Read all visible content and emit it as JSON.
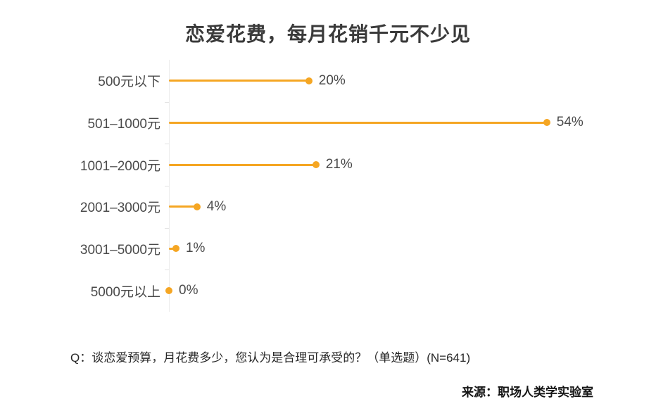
{
  "title": "恋爱花费，每月花销千元不少见",
  "chart_data": {
    "type": "bar",
    "orientation": "horizontal",
    "title": "恋爱花费，每月花销千元不少见",
    "categories": [
      "500元以下",
      "501–1000元",
      "1001–2000元",
      "2001–3000元",
      "3001–5000元",
      "5000元以上"
    ],
    "values": [
      20,
      54,
      21,
      4,
      1,
      0
    ],
    "value_labels": [
      "20%",
      "54%",
      "21%",
      "4%",
      "1%",
      "0%"
    ],
    "unit": "%",
    "xlim": [
      0,
      56
    ],
    "grid": false,
    "legend": false,
    "accent_color": "#F5A623",
    "axis_color": "#ececec",
    "label_color": "#4a4a4a"
  },
  "footnote": "Q：谈恋爱预算，月花费多少，您认为是合理可承受的？（单选题）(N=641)",
  "source": "来源：职场人类学实验室"
}
